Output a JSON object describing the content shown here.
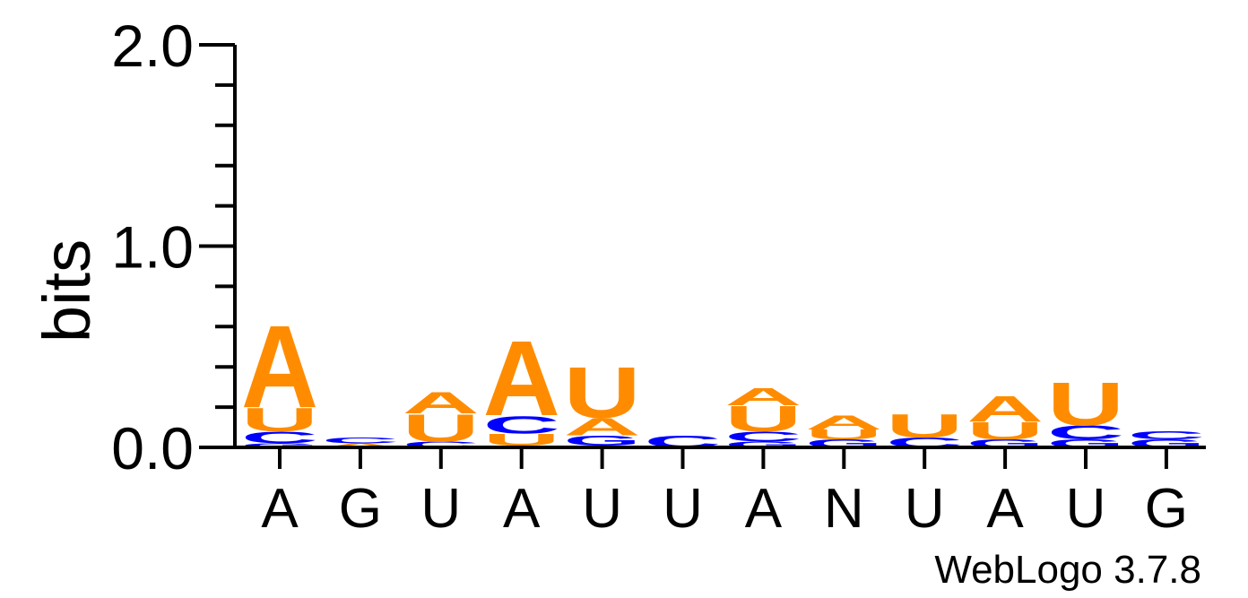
{
  "chart_data": {
    "type": "sequence-logo",
    "ylabel": "bits",
    "ylim": [
      0,
      2.0
    ],
    "ytick_labels": [
      "0.0",
      "1.0",
      "2.0"
    ],
    "yticks": [
      0,
      1.0,
      2.0
    ],
    "yminor_step": 0.2,
    "xtick_labels": [
      "A",
      "G",
      "U",
      "A",
      "U",
      "U",
      "A",
      "N",
      "U",
      "A",
      "U",
      "G"
    ],
    "credit": "WebLogo 3.7.8",
    "colors": {
      "A": "#ff8c00",
      "U": "#ff8c00",
      "C": "#0000ff",
      "G": "#0000ff",
      "axis": "#000000"
    },
    "positions": [
      {
        "stack": [
          {
            "letter": "G",
            "bits": 0.02
          },
          {
            "letter": "C",
            "bits": 0.06
          },
          {
            "letter": "U",
            "bits": 0.12
          },
          {
            "letter": "A",
            "bits": 0.42
          }
        ]
      },
      {
        "stack": [
          {
            "letter": "A",
            "bits": 0.02
          },
          {
            "letter": "C",
            "bits": 0.03
          }
        ]
      },
      {
        "stack": [
          {
            "letter": "C",
            "bits": 0.03
          },
          {
            "letter": "U",
            "bits": 0.14
          },
          {
            "letter": "A",
            "bits": 0.11
          }
        ]
      },
      {
        "stack": [
          {
            "letter": "C",
            "bits": 0.01
          },
          {
            "letter": "U",
            "bits": 0.06
          },
          {
            "letter": "C",
            "bits": 0.09
          },
          {
            "letter": "A",
            "bits": 0.38
          }
        ]
      },
      {
        "stack": [
          {
            "letter": "C",
            "bits": 0.01
          },
          {
            "letter": "G",
            "bits": 0.05
          },
          {
            "letter": "A",
            "bits": 0.09
          },
          {
            "letter": "U",
            "bits": 0.26
          }
        ]
      },
      {
        "stack": [
          {
            "letter": "C",
            "bits": 0.06
          }
        ]
      },
      {
        "stack": [
          {
            "letter": "G",
            "bits": 0.03
          },
          {
            "letter": "C",
            "bits": 0.05
          },
          {
            "letter": "U",
            "bits": 0.13
          },
          {
            "letter": "A",
            "bits": 0.09
          }
        ]
      },
      {
        "stack": [
          {
            "letter": "G",
            "bits": 0.04
          },
          {
            "letter": "U",
            "bits": 0.05
          },
          {
            "letter": "A",
            "bits": 0.07
          }
        ]
      },
      {
        "stack": [
          {
            "letter": "C",
            "bits": 0.05
          },
          {
            "letter": "U",
            "bits": 0.12
          }
        ]
      },
      {
        "stack": [
          {
            "letter": "G",
            "bits": 0.04
          },
          {
            "letter": "U",
            "bits": 0.09
          },
          {
            "letter": "A",
            "bits": 0.13
          }
        ]
      },
      {
        "stack": [
          {
            "letter": "G",
            "bits": 0.04
          },
          {
            "letter": "C",
            "bits": 0.07
          },
          {
            "letter": "U",
            "bits": 0.22
          }
        ]
      },
      {
        "stack": [
          {
            "letter": "G",
            "bits": 0.04
          },
          {
            "letter": "C",
            "bits": 0.04
          }
        ]
      }
    ]
  }
}
